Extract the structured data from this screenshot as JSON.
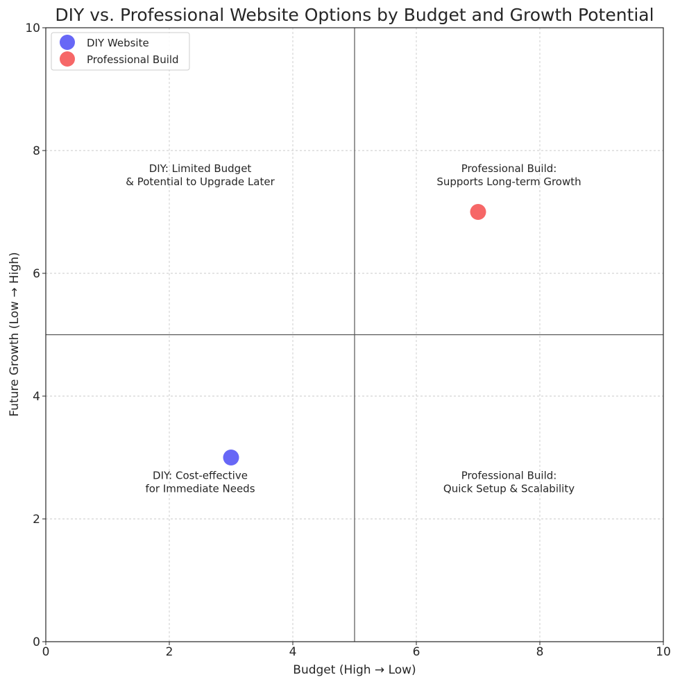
{
  "chart_data": {
    "type": "scatter",
    "title": "DIY vs. Professional Website Options by Budget and Growth Potential",
    "xlabel": "Budget (High → Low)",
    "ylabel": "Future Growth (Low → High)",
    "xlim": [
      0,
      10
    ],
    "ylim": [
      0,
      10
    ],
    "xticks": [
      "0",
      "2",
      "4",
      "6",
      "8",
      "10"
    ],
    "yticks": [
      "0",
      "2",
      "4",
      "6",
      "8",
      "10"
    ],
    "grid": true,
    "legend_position": "top-left",
    "reference_lines": {
      "x": 5,
      "y": 5
    },
    "series": [
      {
        "name": "DIY Website",
        "color": "#5f5ff5",
        "points": [
          {
            "x": 3,
            "y": 3
          }
        ]
      },
      {
        "name": "Professional Build",
        "color": "#f55f5f",
        "points": [
          {
            "x": 7,
            "y": 7
          }
        ]
      }
    ],
    "annotations": [
      {
        "x": 2.5,
        "y": 7.6,
        "lines": [
          "DIY: Limited Budget",
          "& Potential to Upgrade Later"
        ]
      },
      {
        "x": 7.5,
        "y": 7.6,
        "lines": [
          "Professional Build:",
          "Supports Long-term Growth"
        ]
      },
      {
        "x": 2.5,
        "y": 2.6,
        "lines": [
          "DIY: Cost-effective",
          "for Immediate Needs"
        ]
      },
      {
        "x": 7.5,
        "y": 2.6,
        "lines": [
          "Professional Build:",
          "Quick Setup & Scalability"
        ]
      }
    ]
  }
}
